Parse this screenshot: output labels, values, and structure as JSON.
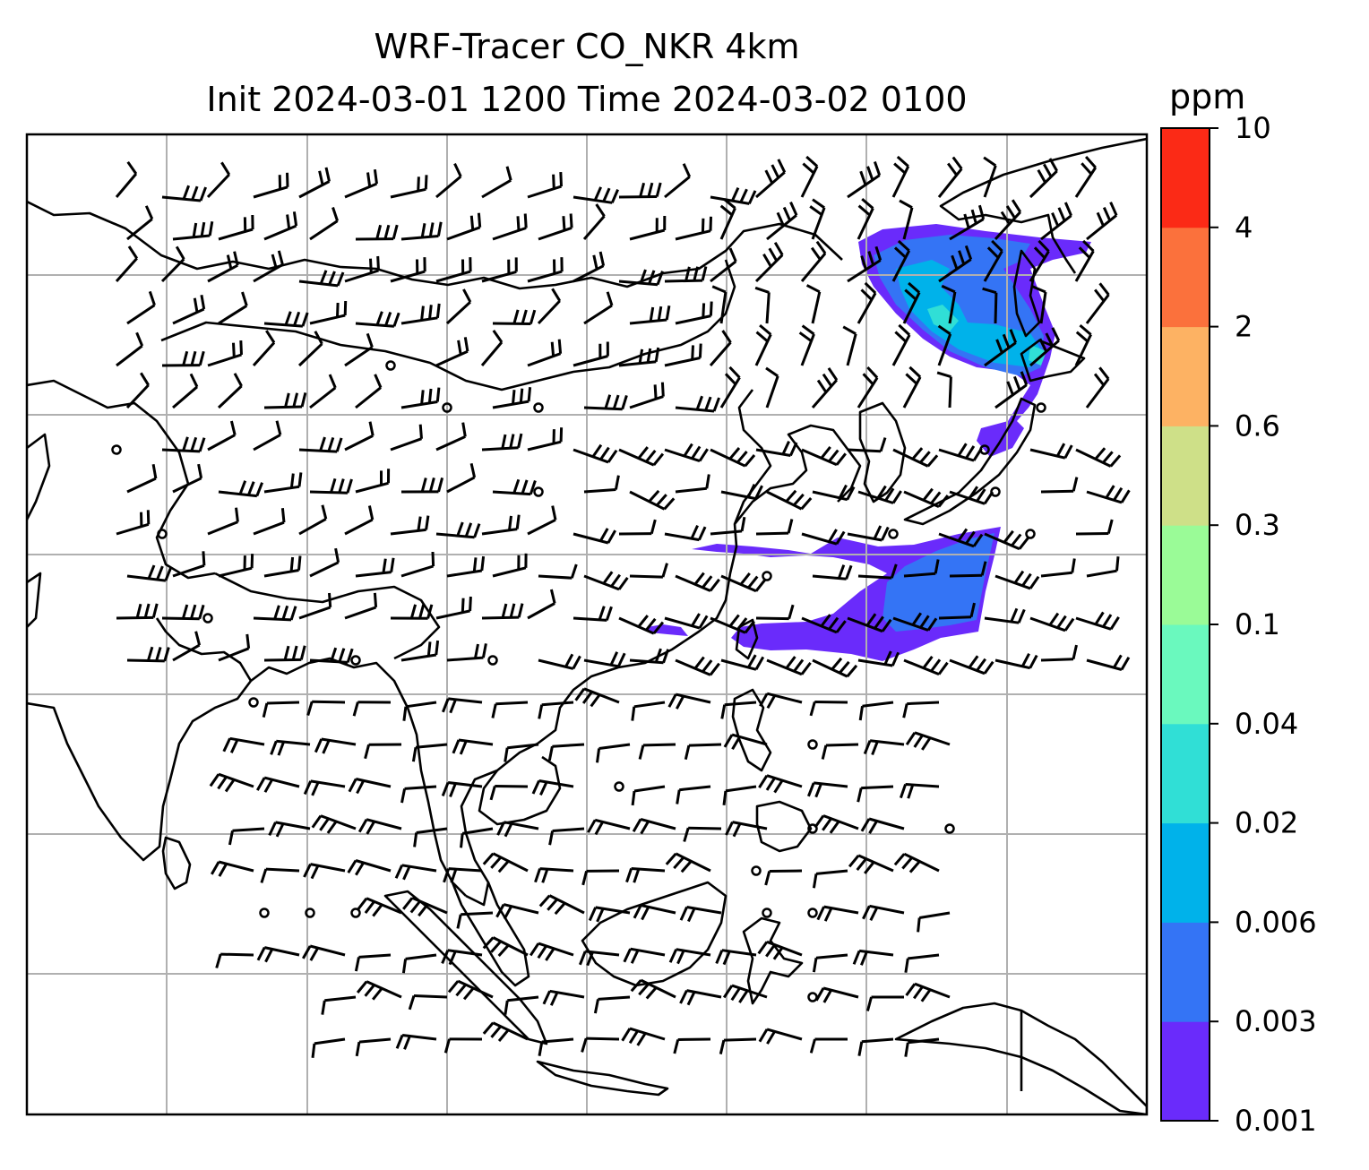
{
  "title": {
    "line1": "WRF-Tracer CO_NKR 4km",
    "line2": "Init 2024-03-01 1200 Time 2024-03-02 0100"
  },
  "colorbar": {
    "unit": "ppm",
    "levels": [
      "0.001",
      "0.003",
      "0.006",
      "0.02",
      "0.04",
      "0.1",
      "0.3",
      "0.6",
      "2",
      "4",
      "10"
    ],
    "colors": [
      "#6a2bfb",
      "#3474f5",
      "#00b2ea",
      "#30dfd6",
      "#6af9be",
      "#9afb97",
      "#cee088",
      "#fdb263",
      "#fb713c",
      "#fb2a16"
    ]
  },
  "map": {
    "coastline_color": "#000000",
    "grid_color": "#b0b0b0",
    "tracer_colors": {
      "low": "#6a2bfb",
      "mid": "#3474f5",
      "high": "#00b2ea",
      "higher": "#30dfd6"
    }
  }
}
